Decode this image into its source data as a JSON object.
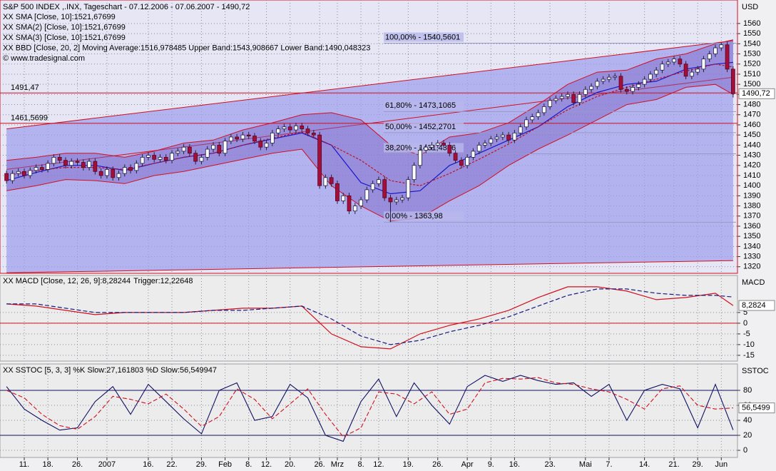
{
  "chart_data": [
    {
      "type": "candlestick",
      "title": "S&P 500 INDEX ,.INX, Tageschart - 07.12.2006 - 07.06.2007 - 1490,72",
      "legend": [
        {
          "text": "XX SMA [Close, 10]:1521,67699",
          "color": "#1818c8"
        },
        {
          "text": "XX SMA(2) [Close, 10]:1521,67699",
          "color": "#1818c8"
        },
        {
          "text": "XX SMA(3) [Close, 10]:1521,67699",
          "color": "#1818c8"
        },
        {
          "text": "XX BBD [Close, 20, 2] Moving Average:1516,978485 Upper Band:1543,908667 Lower Band:1490,048323",
          "color": "#d01020"
        }
      ],
      "copyright": "© www.tradesignal.com",
      "y_label": "USD",
      "up_color": "#ffffff",
      "down_color": "#a0103a",
      "open": [
        1412,
        1405,
        1412,
        1414,
        1410,
        1415,
        1418,
        1416,
        1422,
        1428,
        1425,
        1420,
        1424,
        1423,
        1418,
        1424,
        1414,
        1410,
        1416,
        1408,
        1412,
        1418,
        1415,
        1422,
        1428,
        1430,
        1426,
        1428,
        1425,
        1432,
        1434,
        1438,
        1432,
        1424,
        1428,
        1436,
        1440,
        1432,
        1444,
        1448,
        1446,
        1450,
        1449,
        1444,
        1438,
        1442,
        1452,
        1456,
        1458,
        1455,
        1459,
        1456,
        1452,
        1450,
        1400,
        1408,
        1402,
        1385,
        1390,
        1375,
        1380,
        1386,
        1396,
        1402,
        1406,
        1388,
        1384,
        1386,
        1388,
        1406,
        1420,
        1435,
        1438,
        1440,
        1442,
        1440,
        1432,
        1425,
        1420,
        1428,
        1434,
        1440,
        1442,
        1446,
        1448,
        1450,
        1445,
        1452,
        1458,
        1465,
        1468,
        1472,
        1478,
        1484,
        1486,
        1488,
        1490,
        1482,
        1490,
        1495,
        1498,
        1503,
        1505,
        1507,
        1508,
        1495,
        1493,
        1497,
        1500,
        1505,
        1510,
        1514,
        1520,
        1522,
        1525,
        1520,
        1508,
        1512,
        1515,
        1525,
        1530,
        1536,
        1539,
        1515
      ],
      "high": [
        1415,
        1415,
        1417,
        1417,
        1418,
        1421,
        1421,
        1425,
        1431,
        1431,
        1428,
        1427,
        1427,
        1426,
        1427,
        1427,
        1417,
        1419,
        1419,
        1415,
        1421,
        1421,
        1425,
        1431,
        1433,
        1433,
        1431,
        1431,
        1435,
        1437,
        1441,
        1441,
        1435,
        1431,
        1439,
        1443,
        1443,
        1447,
        1451,
        1451,
        1453,
        1453,
        1452,
        1447,
        1445,
        1455,
        1459,
        1461,
        1461,
        1462,
        1462,
        1459,
        1455,
        1453,
        1411,
        1411,
        1405,
        1393,
        1393,
        1383,
        1389,
        1399,
        1405,
        1409,
        1409,
        1391,
        1389,
        1391,
        1409,
        1423,
        1438,
        1441,
        1443,
        1445,
        1445,
        1443,
        1435,
        1428,
        1431,
        1437,
        1443,
        1445,
        1449,
        1451,
        1453,
        1453,
        1455,
        1461,
        1468,
        1471,
        1475,
        1481,
        1487,
        1489,
        1491,
        1493,
        1493,
        1493,
        1498,
        1501,
        1506,
        1508,
        1510,
        1511,
        1511,
        1498,
        1500,
        1503,
        1508,
        1513,
        1517,
        1523,
        1525,
        1528,
        1528,
        1523,
        1515,
        1518,
        1528,
        1533,
        1539,
        1541,
        1542,
        1518
      ],
      "low": [
        1402,
        1402,
        1409,
        1407,
        1407,
        1412,
        1413,
        1413,
        1419,
        1422,
        1417,
        1417,
        1420,
        1415,
        1415,
        1411,
        1407,
        1407,
        1405,
        1405,
        1409,
        1412,
        1412,
        1419,
        1425,
        1423,
        1423,
        1422,
        1422,
        1429,
        1431,
        1429,
        1421,
        1421,
        1425,
        1433,
        1429,
        1429,
        1441,
        1443,
        1443,
        1446,
        1441,
        1435,
        1435,
        1439,
        1449,
        1453,
        1452,
        1452,
        1453,
        1449,
        1447,
        1397,
        1397,
        1399,
        1382,
        1382,
        1372,
        1372,
        1377,
        1383,
        1393,
        1399,
        1385,
        1364,
        1381,
        1383,
        1385,
        1403,
        1417,
        1432,
        1435,
        1437,
        1437,
        1429,
        1422,
        1417,
        1417,
        1425,
        1431,
        1437,
        1439,
        1443,
        1445,
        1442,
        1442,
        1449,
        1455,
        1462,
        1465,
        1469,
        1475,
        1481,
        1483,
        1485,
        1479,
        1479,
        1487,
        1492,
        1495,
        1500,
        1502,
        1504,
        1492,
        1490,
        1490,
        1494,
        1497,
        1502,
        1507,
        1511,
        1517,
        1519,
        1517,
        1505,
        1505,
        1509,
        1512,
        1522,
        1527,
        1533,
        1512,
        1487
      ],
      "close": [
        1405,
        1412,
        1414,
        1410,
        1415,
        1418,
        1416,
        1422,
        1428,
        1425,
        1420,
        1424,
        1423,
        1418,
        1424,
        1414,
        1410,
        1416,
        1408,
        1412,
        1418,
        1415,
        1422,
        1428,
        1430,
        1426,
        1428,
        1425,
        1432,
        1434,
        1438,
        1432,
        1424,
        1428,
        1436,
        1440,
        1432,
        1444,
        1448,
        1446,
        1450,
        1449,
        1444,
        1438,
        1442,
        1452,
        1456,
        1458,
        1455,
        1459,
        1456,
        1452,
        1450,
        1400,
        1408,
        1402,
        1385,
        1390,
        1375,
        1380,
        1386,
        1396,
        1402,
        1406,
        1388,
        1384,
        1386,
        1388,
        1406,
        1420,
        1435,
        1438,
        1440,
        1442,
        1440,
        1432,
        1425,
        1420,
        1428,
        1434,
        1440,
        1442,
        1446,
        1448,
        1450,
        1445,
        1452,
        1458,
        1465,
        1468,
        1472,
        1478,
        1484,
        1486,
        1488,
        1490,
        1482,
        1490,
        1495,
        1498,
        1503,
        1505,
        1507,
        1508,
        1495,
        1493,
        1497,
        1500,
        1505,
        1510,
        1514,
        1520,
        1522,
        1525,
        1520,
        1508,
        1512,
        1515,
        1525,
        1530,
        1536,
        1539,
        1515,
        1490.72
      ],
      "line_x": [
        0,
        5,
        10,
        15,
        20,
        25,
        30,
        35,
        40,
        45,
        50,
        55,
        60,
        65,
        70,
        75,
        80,
        85,
        90,
        95,
        100,
        105,
        110,
        115,
        120,
        123
      ],
      "lines": [
        {
          "color": "#1818c8",
          "dash": false,
          "values": [
            1405,
            1413,
            1420,
            1420,
            1415,
            1422,
            1428,
            1432,
            1440,
            1446,
            1452,
            1440,
            1403,
            1392,
            1395,
            1420,
            1432,
            1445,
            1458,
            1478,
            1492,
            1500,
            1503,
            1515,
            1520,
            1521.67699
          ]
        },
        {
          "color": "#c01020",
          "dash": true,
          "values": [
            1410,
            1415,
            1418,
            1418,
            1416,
            1422,
            1428,
            1432,
            1440,
            1447,
            1453,
            1440,
            1425,
            1405,
            1400,
            1412,
            1426,
            1441,
            1458,
            1475,
            1488,
            1497,
            1505,
            1513,
            1520,
            1516.978485
          ]
        }
      ],
      "bands": {
        "color": "#d01020",
        "fill": "#7a62c4",
        "upper": [
          1425,
          1428,
          1432,
          1432,
          1428,
          1434,
          1442,
          1445,
          1455,
          1462,
          1470,
          1472,
          1465,
          1440,
          1430,
          1448,
          1452,
          1462,
          1480,
          1500,
          1512,
          1514,
          1525,
          1530,
          1540,
          1543.908667
        ],
        "lower": [
          1395,
          1400,
          1406,
          1405,
          1402,
          1410,
          1414,
          1420,
          1426,
          1432,
          1436,
          1400,
          1380,
          1365,
          1368,
          1385,
          1400,
          1420,
          1436,
          1450,
          1465,
          1480,
          1485,
          1497,
          1500,
          1490.048323
        ]
      },
      "channel": {
        "x": [
          0,
          123
        ],
        "fill": "#9c9cec",
        "color": "#d01020",
        "lines": [
          {
            "values": [
              1456,
              1543
            ]
          },
          {
            "values": [
              1416,
              1507
            ]
          },
          {
            "values": [
              1314,
              1326
            ]
          }
        ]
      },
      "levels": [
        {
          "value": 1491.47,
          "label": "1491,47"
        },
        {
          "value": 1461.5699,
          "label": "1461,5699"
        }
      ],
      "fib": [
        {
          "value": 1540.5601,
          "label": "100,00% - 1540,5601"
        },
        {
          "value": 1473.1065,
          "label": "61,80% - 1473,1065"
        },
        {
          "value": 1452.2701,
          "label": "50,00% - 1452,2701"
        },
        {
          "value": 1431.4336,
          "label": "38,20% - 1431,4336"
        },
        {
          "value": 1363.98,
          "label": "0,00% - 1363,98"
        }
      ],
      "last": {
        "value": 1490.72,
        "label": "1490,72"
      },
      "xlim": [
        -0.5,
        123.5
      ],
      "ylim": [
        1313.5,
        1583.2
      ],
      "yticks": [
        1320,
        1330,
        1340,
        1350,
        1360,
        1370,
        1380,
        1390,
        1400,
        1410,
        1420,
        1430,
        1440,
        1450,
        1460,
        1470,
        1480,
        1490,
        1500,
        1510,
        1520,
        1530,
        1540,
        1550,
        1560
      ],
      "grid": true
    },
    {
      "type": "macd",
      "title": "XX MACD [Close, 12, 26, 9]:8,28244",
      "trigger_title": "Trigger:12,22648",
      "y_label": "MACD",
      "x": [
        0,
        5,
        10,
        15,
        20,
        25,
        30,
        35,
        40,
        45,
        50,
        55,
        60,
        65,
        70,
        75,
        80,
        85,
        90,
        95,
        100,
        105,
        110,
        115,
        120,
        123
      ],
      "series": [
        {
          "color": "#d01020",
          "dash": false,
          "values": [
            9,
            8,
            6,
            4,
            5,
            5,
            5,
            6,
            7,
            7,
            8,
            -5,
            -11,
            -12,
            -5,
            -1,
            2,
            6,
            12,
            17,
            17,
            15,
            11,
            12,
            14,
            8.28244
          ]
        },
        {
          "color": "#1a1a80",
          "dash": true,
          "values": [
            9,
            9,
            7,
            5,
            5,
            5,
            5,
            6,
            6,
            7,
            8,
            2,
            -6,
            -10,
            -8,
            -4,
            -1,
            3,
            8,
            13,
            16,
            16,
            14,
            13,
            13,
            12.22648
          ]
        }
      ],
      "ref_lines": [
        {
          "value": 0,
          "color": "#d01020"
        }
      ],
      "last": {
        "value": 8.2824,
        "label": "8,2824"
      },
      "xlim": [
        -0.5,
        123.5
      ],
      "ylim": [
        -17.7,
        22.3
      ],
      "yticks": [
        5,
        0,
        -5,
        -10,
        -15
      ],
      "grid": true
    },
    {
      "type": "stochastic",
      "title": "XX SSTOC [5, 3, 3] %K Slow:27,161803 %D Slow:56,549947",
      "y_label": "SSTOC",
      "x": [
        0,
        3,
        6,
        9,
        12,
        15,
        18,
        21,
        24,
        27,
        30,
        33,
        36,
        39,
        42,
        45,
        48,
        51,
        54,
        57,
        60,
        63,
        66,
        69,
        72,
        75,
        78,
        81,
        84,
        87,
        90,
        93,
        96,
        99,
        102,
        105,
        108,
        111,
        114,
        117,
        120,
        123
      ],
      "series": [
        {
          "color": "#101060",
          "dash": false,
          "values": [
            85,
            55,
            40,
            27,
            30,
            65,
            85,
            48,
            88,
            65,
            42,
            22,
            80,
            90,
            40,
            45,
            88,
            70,
            20,
            12,
            65,
            95,
            45,
            90,
            60,
            35,
            85,
            100,
            92,
            100,
            93,
            88,
            90,
            72,
            88,
            40,
            80,
            88,
            82,
            30,
            88,
            27.161803
          ]
        },
        {
          "color": "#d01020",
          "dash": true,
          "values": [
            80,
            70,
            48,
            33,
            28,
            45,
            72,
            68,
            62,
            75,
            55,
            32,
            45,
            82,
            68,
            42,
            62,
            82,
            48,
            18,
            30,
            78,
            75,
            62,
            78,
            48,
            55,
            90,
            96,
            95,
            97,
            90,
            88,
            82,
            78,
            68,
            55,
            82,
            86,
            60,
            55,
            56.549947
          ]
        }
      ],
      "ref_lines": [
        {
          "value": 80,
          "color": "#101060"
        },
        {
          "value": 20,
          "color": "#101060"
        }
      ],
      "last": {
        "value": 56.5499,
        "label": "56,5499"
      },
      "xlim": [
        -0.5,
        123.5
      ],
      "ylim": [
        -9.5,
        115.2
      ],
      "yticks": [
        80,
        60,
        40,
        20,
        0
      ],
      "xticks": [
        {
          "value": 3,
          "label": "11."
        },
        {
          "value": 7,
          "label": "18."
        },
        {
          "value": 12,
          "label": "26."
        },
        {
          "value": 17,
          "label": "2007"
        },
        {
          "value": 24,
          "label": "16."
        },
        {
          "value": 28,
          "label": "22."
        },
        {
          "value": 33,
          "label": "29."
        },
        {
          "value": 37,
          "label": "Feb"
        },
        {
          "value": 41,
          "label": "8."
        },
        {
          "value": 44,
          "label": "12."
        },
        {
          "value": 48,
          "label": "20."
        },
        {
          "value": 53,
          "label": "26."
        },
        {
          "value": 56,
          "label": "Mrz"
        },
        {
          "value": 60,
          "label": "8."
        },
        {
          "value": 63,
          "label": "12."
        },
        {
          "value": 68,
          "label": "19."
        },
        {
          "value": 73,
          "label": "26."
        },
        {
          "value": 78,
          "label": "Apr"
        },
        {
          "value": 82,
          "label": "9."
        },
        {
          "value": 86,
          "label": "16."
        },
        {
          "value": 92,
          "label": "23."
        },
        {
          "value": 98,
          "label": "Mai"
        },
        {
          "value": 102,
          "label": "7."
        },
        {
          "value": 108,
          "label": "14."
        },
        {
          "value": 113,
          "label": "21."
        },
        {
          "value": 117,
          "label": "29."
        },
        {
          "value": 121,
          "label": "Jun"
        }
      ],
      "grid": true
    }
  ]
}
